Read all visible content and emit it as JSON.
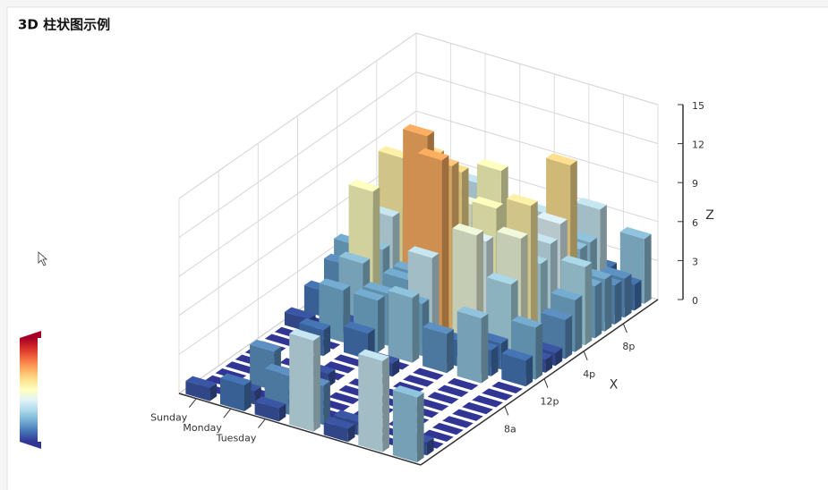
{
  "chart_data": {
    "type": "bar3d",
    "title": "3D 柱状图示例",
    "x_axis_name": "X",
    "z_axis_name": "Z",
    "x_categories": [
      null,
      null,
      null,
      null,
      null,
      null,
      null,
      null,
      "8a",
      null,
      null,
      null,
      "12p",
      null,
      null,
      null,
      "4p",
      null,
      null,
      null,
      "8p",
      null,
      null,
      null
    ],
    "y_categories": [
      "Sunday",
      "Monday",
      "Tuesday",
      null,
      null,
      null,
      null
    ],
    "values": [
      [
        1,
        0,
        0,
        0,
        0,
        0,
        0,
        0,
        0,
        0,
        1,
        0,
        2,
        1,
        3,
        4,
        0,
        0,
        0,
        0,
        1,
        2,
        2,
        6
      ],
      [
        2,
        1,
        0,
        3,
        0,
        0,
        0,
        0,
        2,
        0,
        4,
        1,
        5,
        10,
        5,
        7,
        11,
        6,
        0,
        5,
        3,
        4,
        2,
        0
      ],
      [
        1,
        3,
        0,
        0,
        0,
        1,
        0,
        0,
        0,
        2,
        4,
        4,
        2,
        4,
        4,
        14,
        12,
        1,
        8,
        5,
        3,
        7,
        3,
        0
      ],
      [
        7,
        3,
        0,
        0,
        0,
        0,
        0,
        0,
        1,
        0,
        5,
        4,
        7,
        14,
        13,
        12,
        9,
        5,
        5,
        10,
        6,
        4,
        4,
        1
      ],
      [
        1,
        1,
        0,
        0,
        0,
        0,
        0,
        0,
        0,
        0,
        3,
        2,
        1,
        9,
        8,
        10,
        6,
        5,
        5,
        5,
        7,
        4,
        2,
        4
      ],
      [
        7,
        0,
        0,
        0,
        0,
        0,
        0,
        0,
        0,
        0,
        5,
        2,
        2,
        6,
        9,
        11,
        6,
        7,
        8,
        12,
        5,
        5,
        7,
        2
      ],
      [
        5,
        1,
        0,
        0,
        0,
        0,
        0,
        0,
        0,
        0,
        0,
        2,
        4,
        1,
        1,
        3,
        4,
        6,
        4,
        4,
        3,
        3,
        2,
        5
      ]
    ],
    "zlim": [
      0,
      15
    ],
    "zticks": [
      0,
      3,
      6,
      9,
      12,
      15
    ],
    "visual_map": {
      "min": 0,
      "max": 20,
      "colors": [
        "#313695",
        "#4575b4",
        "#74add1",
        "#abd9e9",
        "#e0f3f8",
        "#ffffbf",
        "#fee090",
        "#fdae61",
        "#f46d43",
        "#d73027",
        "#a50026"
      ]
    }
  }
}
